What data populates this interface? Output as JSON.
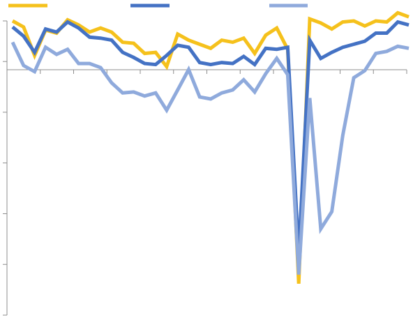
{
  "chart_data": {
    "type": "line",
    "title": "",
    "xlabel": "",
    "ylabel": "",
    "ylim": [
      -25,
      4
    ],
    "grid": false,
    "legend_placement": "top",
    "y_ticks": [
      4,
      0,
      -5,
      -10,
      -15,
      -20,
      -25
    ],
    "x_tick_count": 12,
    "series": [
      {
        "color": "#F5C11C",
        "values": [
          4.0,
          3.4,
          0.6,
          3.1,
          2.8,
          4.1,
          3.6,
          2.9,
          3.3,
          2.9,
          1.9,
          1.8,
          0.8,
          0.9,
          -0.5,
          2.7,
          2.1,
          1.7,
          1.3,
          2.1,
          1.9,
          2.3,
          0.8,
          2.6,
          3.3,
          1.2,
          -21.9,
          4.2,
          3.8,
          3.2,
          3.9,
          4.0,
          3.5,
          4.0,
          3.9,
          4.8,
          4.4
        ]
      },
      {
        "color": "#4472C4",
        "values": [
          3.4,
          2.5,
          0.9,
          3.2,
          2.9,
          3.9,
          3.3,
          2.4,
          2.3,
          2.1,
          0.9,
          0.4,
          -0.2,
          -0.3,
          0.6,
          1.6,
          1.4,
          -0.1,
          -0.3,
          -0.1,
          -0.2,
          0.5,
          -0.3,
          1.3,
          1.2,
          1.4,
          -19.0,
          2.1,
          0.3,
          0.9,
          1.4,
          1.7,
          2.0,
          2.8,
          2.8,
          3.9,
          3.6
        ]
      },
      {
        "color": "#8FAADC",
        "values": [
          1.9,
          -0.4,
          -1.0,
          1.4,
          0.7,
          1.2,
          -0.2,
          -0.2,
          -0.6,
          -2.1,
          -3.1,
          -3.0,
          -3.4,
          -3.1,
          -4.8,
          -2.8,
          -0.8,
          -3.5,
          -3.7,
          -3.1,
          -2.8,
          -1.8,
          -3.0,
          -1.2,
          0.3,
          -1.3,
          -21.0,
          -3.6,
          -16.5,
          -14.8,
          -7.3,
          -1.6,
          -0.9,
          0.8,
          1.0,
          1.5,
          1.3
        ]
      }
    ]
  }
}
